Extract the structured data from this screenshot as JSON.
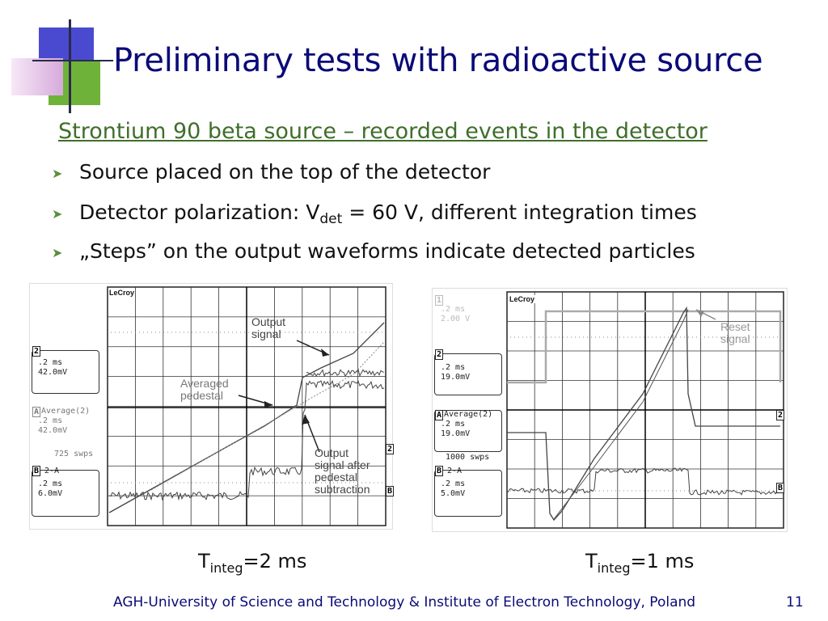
{
  "slide": {
    "title": "Preliminary tests with radioactive source",
    "subtitle": "Strontium 90 beta source – recorded events in the detector",
    "bullets": {
      "b1": "Source placed on the top of the detector",
      "b2_pre": "Detector polarization: V",
      "b2_sub": "det",
      "b2_post": " = 60 V, different integration times",
      "b3": "„Steps” on the output waveforms indicate detected particles"
    },
    "bullet_icon": "arrow-bullet",
    "footer": "AGH-University of Science and Technology & Institute of Electron Technology, Poland",
    "page_number": "11"
  },
  "scope_left": {
    "brand": "LeCroy",
    "ch2": {
      "num": "2",
      "line1": ".2 ms",
      "line2": "42.0mV"
    },
    "chA": {
      "num": "A",
      "line1": "Average(2)",
      "line2": ".2 ms",
      "line3": "42.0mV",
      "line4": "725 swps"
    },
    "chB": {
      "num": "B",
      "line1": "2-A",
      "line2": ".2 ms",
      "line3": "6.0mV"
    },
    "marker_2": "2",
    "marker_B": "B",
    "annotations": {
      "output_signal": [
        "Output",
        "signal"
      ],
      "averaged_pedestal": [
        "Averaged",
        "pedestal"
      ],
      "output_after": [
        "Output",
        "signal after",
        "pedestal",
        "subtraction"
      ]
    },
    "caption_main": "T",
    "caption_sub": "integ",
    "caption_rest": "=2 ms"
  },
  "scope_right": {
    "brand": "LeCroy",
    "ghost": {
      "num": "1",
      "line1": ".2 ms",
      "line2": "2.00 V"
    },
    "ch2": {
      "num": "2",
      "line1": ".2 ms",
      "line2": "19.0mV"
    },
    "chA": {
      "num": "A",
      "line1": "Average(2)",
      "line2": ".2 ms",
      "line3": "19.0mV",
      "line4": "1000 swps"
    },
    "chB": {
      "num": "B",
      "line1": "2-A",
      "line2": ".2 ms",
      "line3": "5.0mV"
    },
    "marker_2": "2",
    "marker_B": "B",
    "marker_A": "A",
    "annotations": {
      "reset_signal": [
        "Reset",
        "signal"
      ]
    },
    "caption_main": "T",
    "caption_sub": "integ",
    "caption_rest": "=1 ms"
  },
  "colors": {
    "title": "#0a0a78",
    "subtitle": "#3f6e2b",
    "logo_blue": "#4a4ad0",
    "logo_green": "#6fb23a",
    "logo_pink": "#e6c6ea"
  }
}
